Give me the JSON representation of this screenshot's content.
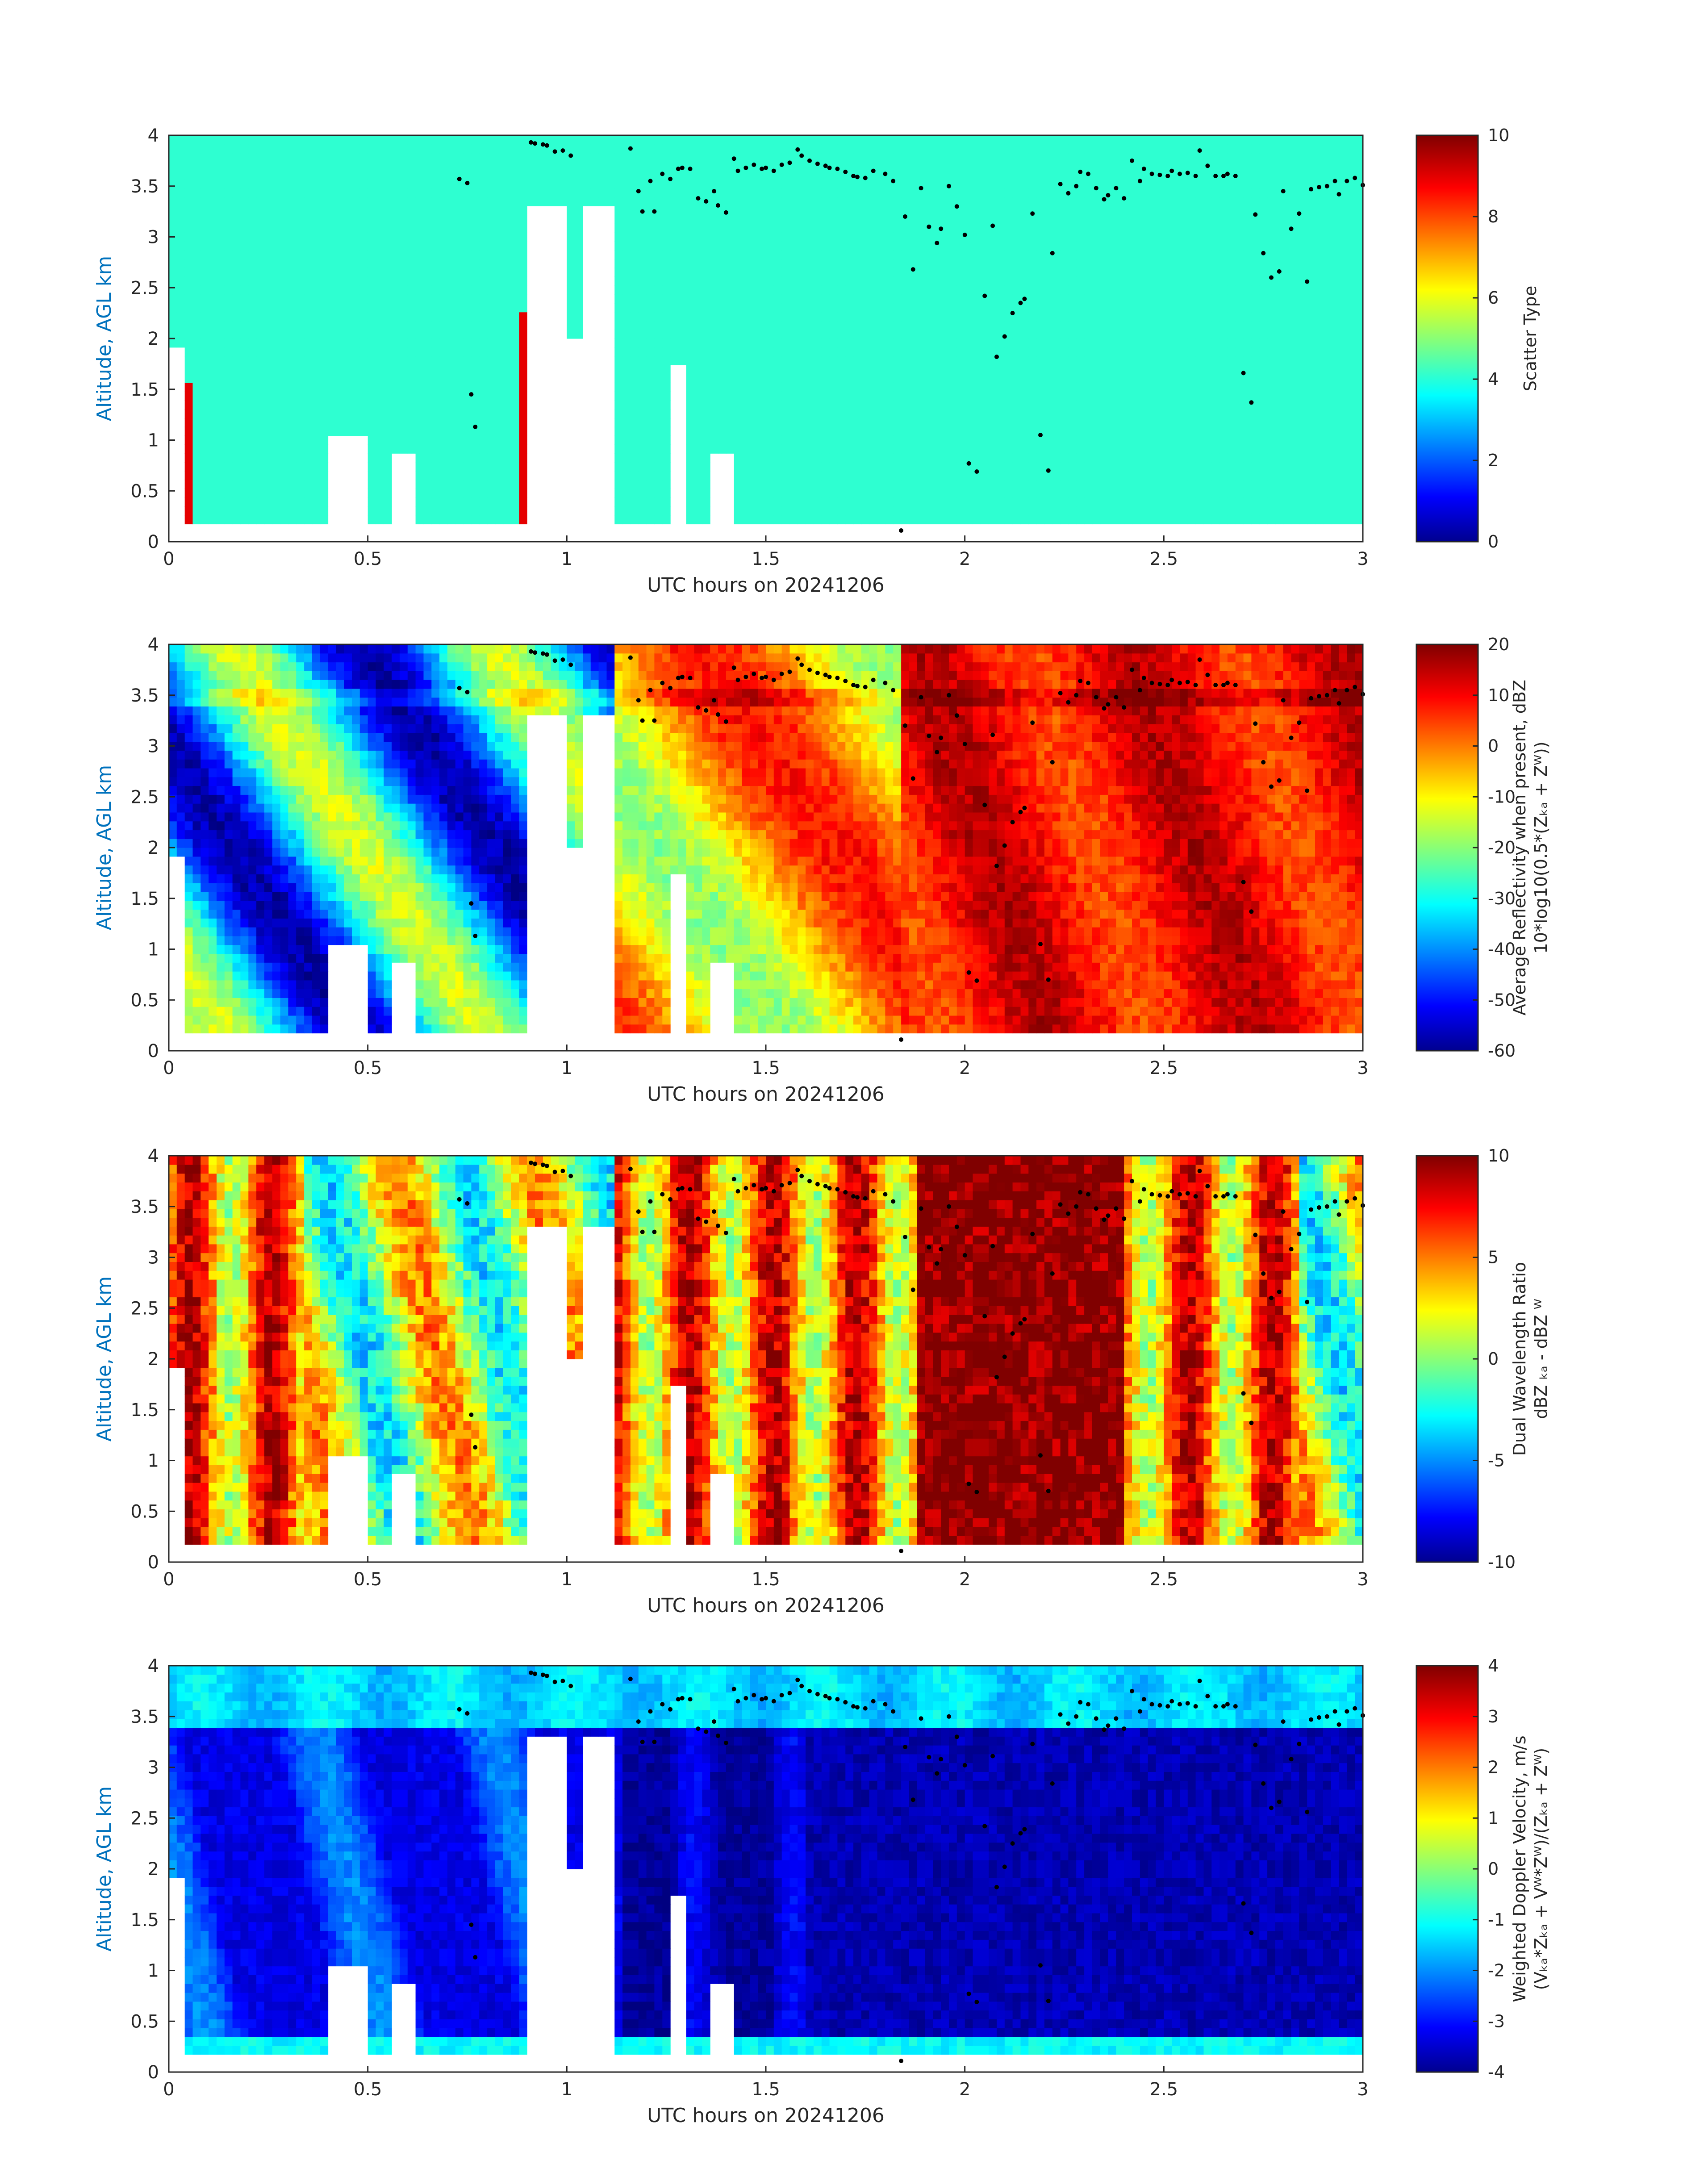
{
  "figure": {
    "xlabel": "UTC hours on 20241206",
    "ylabel": "Altitude, AGL km",
    "x_ticks": [
      "0",
      "0.5",
      "1",
      "1.5",
      "2",
      "2.5",
      "3"
    ],
    "y_ticks": [
      "0",
      "0.5",
      "1",
      "1.5",
      "2",
      "2.5",
      "3",
      "3.5",
      "4"
    ]
  },
  "chart_data": [
    {
      "type": "heatmap",
      "variable": "scatter_type",
      "xlabel": "UTC hours on 20241206",
      "ylabel": "Altitude, AGL km",
      "xlim": [
        0,
        3
      ],
      "ylim": [
        0,
        4
      ],
      "colorbar": {
        "title_lines": [
          "Scatter Type"
        ],
        "range": [
          0,
          10
        ],
        "ticks": [
          "0",
          "2",
          "4",
          "6",
          "8",
          "10"
        ]
      },
      "dominant_value": 4,
      "secondary_value": 9,
      "colormap": "jet"
    },
    {
      "type": "heatmap",
      "variable": "average_reflectivity",
      "xlabel": "UTC hours on 20241206",
      "ylabel": "Altitude, AGL km",
      "xlim": [
        0,
        3
      ],
      "ylim": [
        0,
        4
      ],
      "colorbar": {
        "title_lines": [
          "Average Reflectivity when present, dBZ",
          "10*log10(0.5*(Zₖₐ + Zᵂ))"
        ],
        "range": [
          -60,
          20
        ],
        "ticks": [
          "-60",
          "-50",
          "-40",
          "-30",
          "-20",
          "-10",
          "0",
          "10",
          "20"
        ]
      },
      "colormap": "jet"
    },
    {
      "type": "heatmap",
      "variable": "dual_wavelength_ratio",
      "xlabel": "UTC hours on 20241206",
      "ylabel": "Altitude, AGL km",
      "xlim": [
        0,
        3
      ],
      "ylim": [
        0,
        4
      ],
      "colorbar": {
        "title_lines": [
          "Dual Wavelength Ratio",
          "dBZ ₖₐ - dBZ ᵂ"
        ],
        "range": [
          -10,
          10
        ],
        "ticks": [
          "-10",
          "-5",
          "0",
          "5",
          "10"
        ]
      },
      "colormap": "jet"
    },
    {
      "type": "heatmap",
      "variable": "weighted_doppler_velocity",
      "xlabel": "UTC hours on 20241206",
      "ylabel": "Altitude, AGL km",
      "xlim": [
        0,
        3
      ],
      "ylim": [
        0,
        4
      ],
      "colorbar": {
        "title_lines": [
          "Weighted Doppler Velocity, m/s",
          "(Vₖₐ*Zₖₐ + Vᵂ*Zᵂ)/(Zₖₐ + Zᵂ)"
        ],
        "range": [
          -4,
          4
        ],
        "ticks": [
          "-4",
          "-3",
          "-2",
          "-1",
          "0",
          "1",
          "2",
          "3",
          "4"
        ]
      },
      "colormap": "jet"
    }
  ],
  "overlay_points": {
    "description_series": "cloud base height",
    "x": [
      0.73,
      0.75,
      0.76,
      0.77,
      0.91,
      0.92,
      0.94,
      0.95,
      0.97,
      0.99,
      1.01,
      1.16,
      1.18,
      1.19,
      1.21,
      1.22,
      1.24,
      1.26,
      1.28,
      1.29,
      1.31,
      1.33,
      1.35,
      1.37,
      1.38,
      1.4,
      1.42,
      1.43,
      1.45,
      1.47,
      1.49,
      1.5,
      1.52,
      1.54,
      1.56,
      1.58,
      1.59,
      1.61,
      1.63,
      1.65,
      1.66,
      1.68,
      1.7,
      1.72,
      1.73,
      1.75,
      1.77,
      1.8,
      1.82,
      1.84,
      1.85,
      1.87,
      1.89,
      1.91,
      1.93,
      1.94,
      1.96,
      1.98,
      2.0,
      2.01,
      2.03,
      2.05,
      2.07,
      2.08,
      2.1,
      2.12,
      2.14,
      2.15,
      2.17,
      2.19,
      2.21,
      2.22,
      2.24,
      2.26,
      2.28,
      2.29,
      2.31,
      2.33,
      2.35,
      2.36,
      2.38,
      2.4,
      2.42,
      2.44,
      2.45,
      2.47,
      2.49,
      2.51,
      2.52,
      2.54,
      2.56,
      2.58,
      2.59,
      2.61,
      2.63,
      2.65,
      2.66,
      2.68,
      2.7,
      2.72,
      2.73,
      2.75,
      2.77,
      2.79,
      2.8,
      2.82,
      2.84,
      2.86,
      2.87,
      2.89,
      2.91,
      2.93,
      2.94,
      2.96,
      2.98,
      3.0
    ],
    "y": [
      3.57,
      3.53,
      1.45,
      1.13,
      3.93,
      3.92,
      3.91,
      3.9,
      3.84,
      3.85,
      3.8,
      3.87,
      3.45,
      3.25,
      3.55,
      3.25,
      3.62,
      3.57,
      3.67,
      3.68,
      3.67,
      3.38,
      3.35,
      3.45,
      3.31,
      3.24,
      3.77,
      3.65,
      3.68,
      3.71,
      3.67,
      3.68,
      3.65,
      3.71,
      3.73,
      3.86,
      3.8,
      3.75,
      3.72,
      3.7,
      3.68,
      3.67,
      3.64,
      3.6,
      3.59,
      3.58,
      3.65,
      3.62,
      3.55,
      0.11,
      3.2,
      2.68,
      3.48,
      3.1,
      2.94,
      3.08,
      3.5,
      3.3,
      3.02,
      0.77,
      0.69,
      2.42,
      3.11,
      1.82,
      2.02,
      2.25,
      2.35,
      2.39,
      3.23,
      1.05,
      0.7,
      2.84,
      3.52,
      3.43,
      3.5,
      3.64,
      3.62,
      3.48,
      3.37,
      3.41,
      3.48,
      3.38,
      3.75,
      3.55,
      3.67,
      3.62,
      3.61,
      3.6,
      3.65,
      3.62,
      3.63,
      3.6,
      3.85,
      3.7,
      3.6,
      3.6,
      3.62,
      3.6,
      1.66,
      1.37,
      3.22,
      2.84,
      2.6,
      2.66,
      3.45,
      3.08,
      3.23,
      2.56,
      3.47,
      3.49,
      3.5,
      3.55,
      3.42,
      3.55,
      3.58,
      3.51
    ],
    "color": "#000000"
  }
}
